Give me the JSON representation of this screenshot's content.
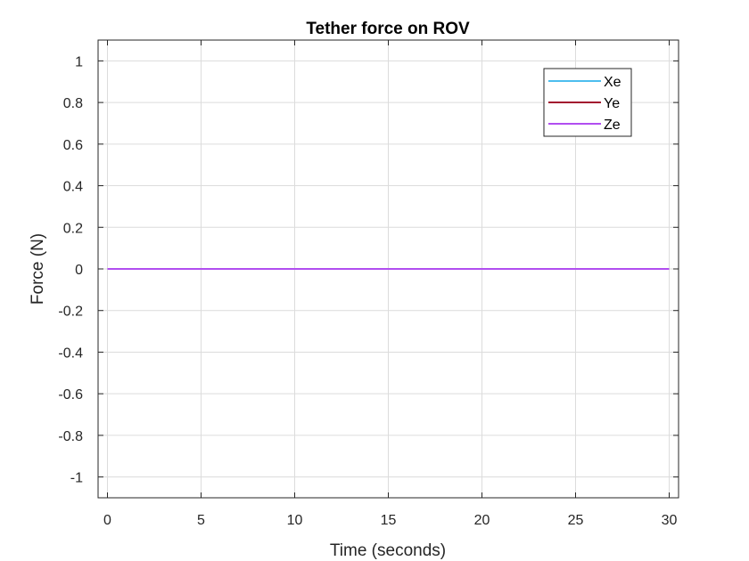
{
  "chart_data": {
    "type": "line",
    "title": "Tether force on ROV",
    "xlabel": "Time (seconds)",
    "ylabel": "Force (N)",
    "xlim": [
      -0.5,
      30.5
    ],
    "ylim": [
      -1.1,
      1.1
    ],
    "xticks": [
      0,
      5,
      10,
      15,
      20,
      25,
      30
    ],
    "yticks": [
      -1,
      -0.8,
      -0.6,
      -0.4,
      -0.2,
      0,
      0.2,
      0.4,
      0.6,
      0.8,
      1
    ],
    "xtick_labels": [
      "0",
      "5",
      "10",
      "15",
      "20",
      "25",
      "30"
    ],
    "ytick_labels": [
      "-1",
      "-0.8",
      "-0.6",
      "-0.4",
      "-0.2",
      "0",
      "0.2",
      "0.4",
      "0.6",
      "0.8",
      "1"
    ],
    "grid": true,
    "legend_position": "top-right",
    "series": [
      {
        "name": "Xe",
        "color": "#4DBEEE",
        "x": [
          0,
          30
        ],
        "y": [
          0,
          0
        ]
      },
      {
        "name": "Ye",
        "color": "#A2142F",
        "x": [
          0,
          30
        ],
        "y": [
          0,
          0
        ]
      },
      {
        "name": "Ze",
        "color": "#B14EF0",
        "x": [
          0,
          30
        ],
        "y": [
          0,
          0
        ]
      }
    ]
  }
}
